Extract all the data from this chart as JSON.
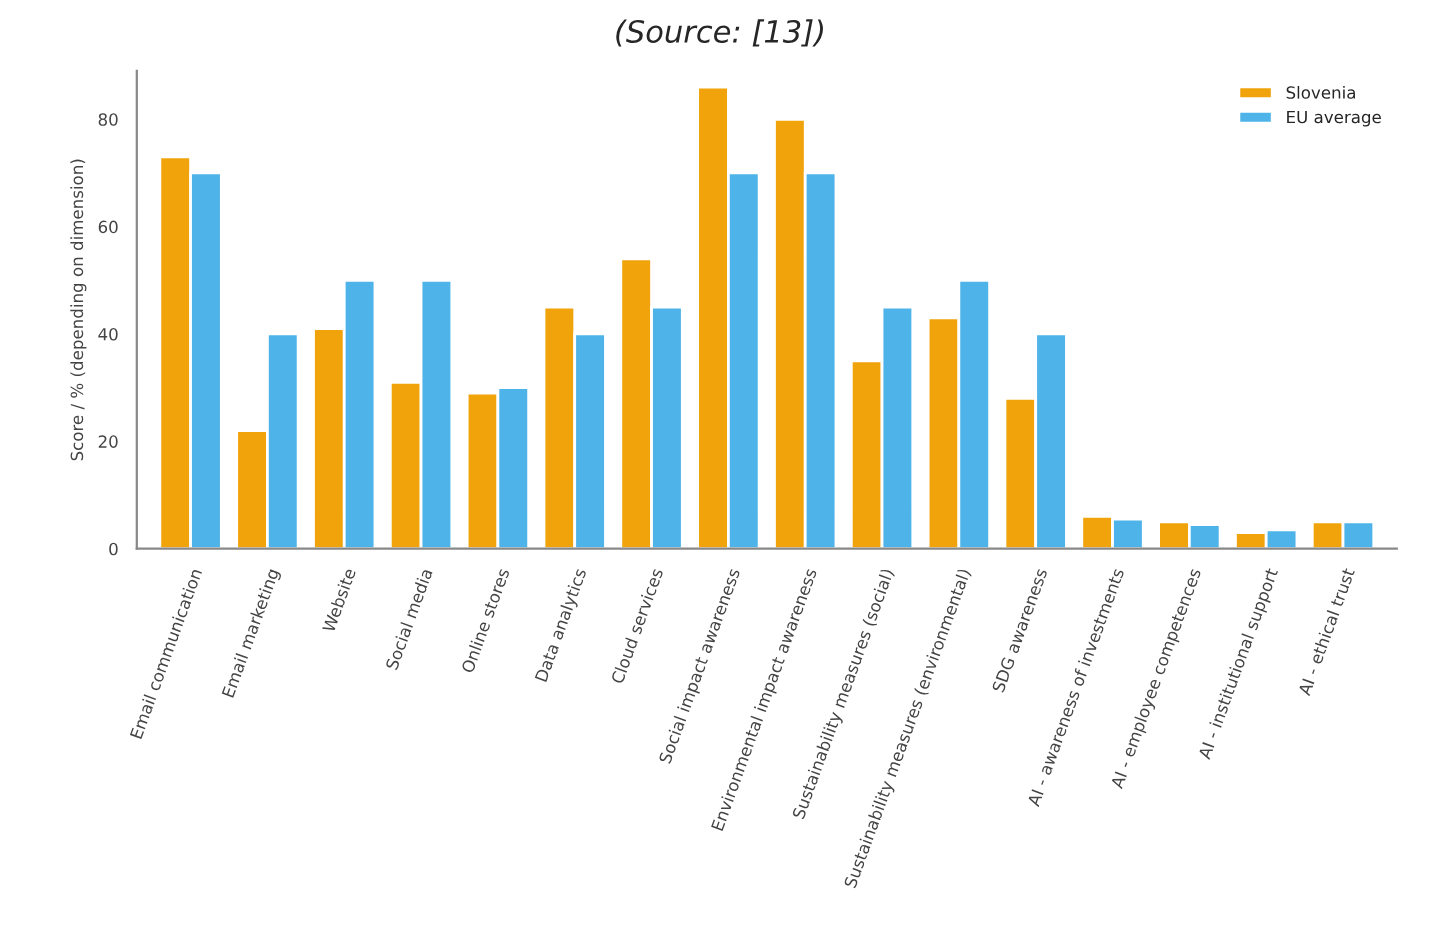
{
  "chart_data": {
    "type": "bar",
    "annotations": [
      "(Source: [13])"
    ],
    "ylabel": "Score / % (depending on dimension)",
    "categories": [
      "Email communication",
      "Email marketing",
      "Website",
      "Social media",
      "Online stores",
      "Data analytics",
      "Cloud services",
      "Social impact awareness",
      "Environmental impact awareness",
      "Sustainability measures (social)",
      "Sustainability measures (environmental)",
      "SDG awareness",
      "AI - awareness of investments",
      "AI - employee competences",
      "AI - institutional support",
      "AI - ethical trust"
    ],
    "series": [
      {
        "name": "Slovenia",
        "color": "#f0a30a",
        "values": [
          73,
          22,
          41,
          31,
          29,
          45,
          54,
          86,
          80,
          35,
          43,
          28,
          6,
          5,
          3,
          5
        ]
      },
      {
        "name": "EU average",
        "color": "#4db3e8",
        "values": [
          70,
          40,
          50,
          50,
          30,
          40,
          45,
          70,
          70,
          45,
          50,
          40,
          5.5,
          4.5,
          3.5,
          5
        ]
      }
    ],
    "ylim": [
      0,
      89
    ],
    "yticks": [
      0,
      20,
      40,
      60,
      80
    ],
    "legend": "top right",
    "grid": false
  }
}
